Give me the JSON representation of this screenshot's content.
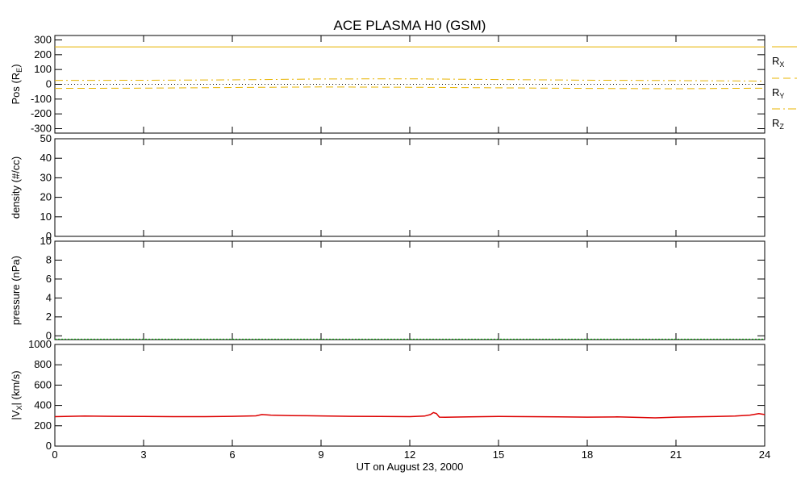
{
  "title": "ACE PLASMA H0 (GSM)",
  "xlabel": "UT on August 23, 2000",
  "x_ticks": [
    "0",
    "3",
    "6",
    "9",
    "12",
    "15",
    "18",
    "21",
    "24"
  ],
  "xlim": [
    0,
    24
  ],
  "colors": {
    "position": "#e8b400",
    "velocity": "#dd0000",
    "pressure_trace": "#00aa00",
    "zero_line": "#000000"
  },
  "panels": [
    {
      "id": "position",
      "ylabel_main": "Pos (R",
      "ylabel_sub": "E",
      "ylabel_end": ")",
      "ylim": [
        -330,
        330
      ],
      "y_ticks": [
        "-300",
        "-200",
        "-100",
        "0",
        "100",
        "200",
        "300"
      ],
      "legend": [
        {
          "main": "R",
          "sub": "X",
          "style": "solid"
        },
        {
          "main": "R",
          "sub": "Y",
          "style": "dashed"
        },
        {
          "main": "R",
          "sub": "Z",
          "style": "dashdot"
        }
      ]
    },
    {
      "id": "density",
      "ylabel": "density (#/cc)",
      "ylim": [
        0,
        50
      ],
      "y_ticks": [
        "0",
        "10",
        "20",
        "30",
        "40",
        "50"
      ]
    },
    {
      "id": "pressure",
      "ylabel": "pressure (nPa)",
      "ylim": [
        -0.4,
        10
      ],
      "y_ticks": [
        "0",
        "2",
        "4",
        "6",
        "8",
        "10"
      ]
    },
    {
      "id": "velocity",
      "ylabel_main": "|V",
      "ylabel_sub": "X",
      "ylabel_end": "| (km/s)",
      "ylim": [
        0,
        1000
      ],
      "y_ticks": [
        "0",
        "200",
        "400",
        "600",
        "800",
        "1000"
      ]
    }
  ],
  "chart_data": [
    {
      "type": "line",
      "panel": "position",
      "ylim": [
        -330,
        330
      ],
      "series": [
        {
          "name": "RX",
          "x": [
            0,
            24
          ],
          "y": [
            253,
            253
          ]
        },
        {
          "name": "RY",
          "x": [
            0,
            3,
            6,
            9,
            12,
            15,
            18,
            21,
            24
          ],
          "y": [
            -28,
            -26,
            -22,
            -18,
            -20,
            -24,
            -28,
            -30,
            -26
          ]
        },
        {
          "name": "RZ",
          "x": [
            0,
            3,
            6,
            9,
            12,
            15,
            18,
            21,
            24
          ],
          "y": [
            26,
            27,
            30,
            36,
            37,
            32,
            28,
            25,
            22
          ]
        }
      ]
    },
    {
      "type": "line",
      "panel": "density",
      "ylim": [
        0,
        50
      ],
      "series": []
    },
    {
      "type": "line",
      "panel": "pressure",
      "ylim": [
        -0.4,
        10
      ],
      "series": [
        {
          "name": "pressure",
          "x": [
            0,
            24
          ],
          "y": [
            -0.35,
            -0.35
          ]
        }
      ]
    },
    {
      "type": "line",
      "panel": "velocity",
      "ylim": [
        0,
        1000
      ],
      "series": [
        {
          "name": "Vx",
          "x": [
            0,
            1,
            2,
            3,
            4,
            5,
            6,
            6.8,
            7.0,
            7.3,
            8,
            9,
            10,
            11,
            12,
            12.5,
            12.7,
            12.8,
            12.9,
            13.0,
            13.2,
            14,
            15,
            16,
            17,
            18,
            19,
            19.8,
            20.3,
            21,
            22,
            23,
            23.5,
            23.8,
            24
          ],
          "y": [
            290,
            295,
            293,
            292,
            290,
            290,
            293,
            298,
            310,
            305,
            300,
            297,
            293,
            292,
            290,
            295,
            310,
            330,
            320,
            285,
            283,
            288,
            292,
            290,
            287,
            285,
            287,
            282,
            278,
            285,
            290,
            295,
            305,
            320,
            310
          ]
        }
      ]
    }
  ]
}
